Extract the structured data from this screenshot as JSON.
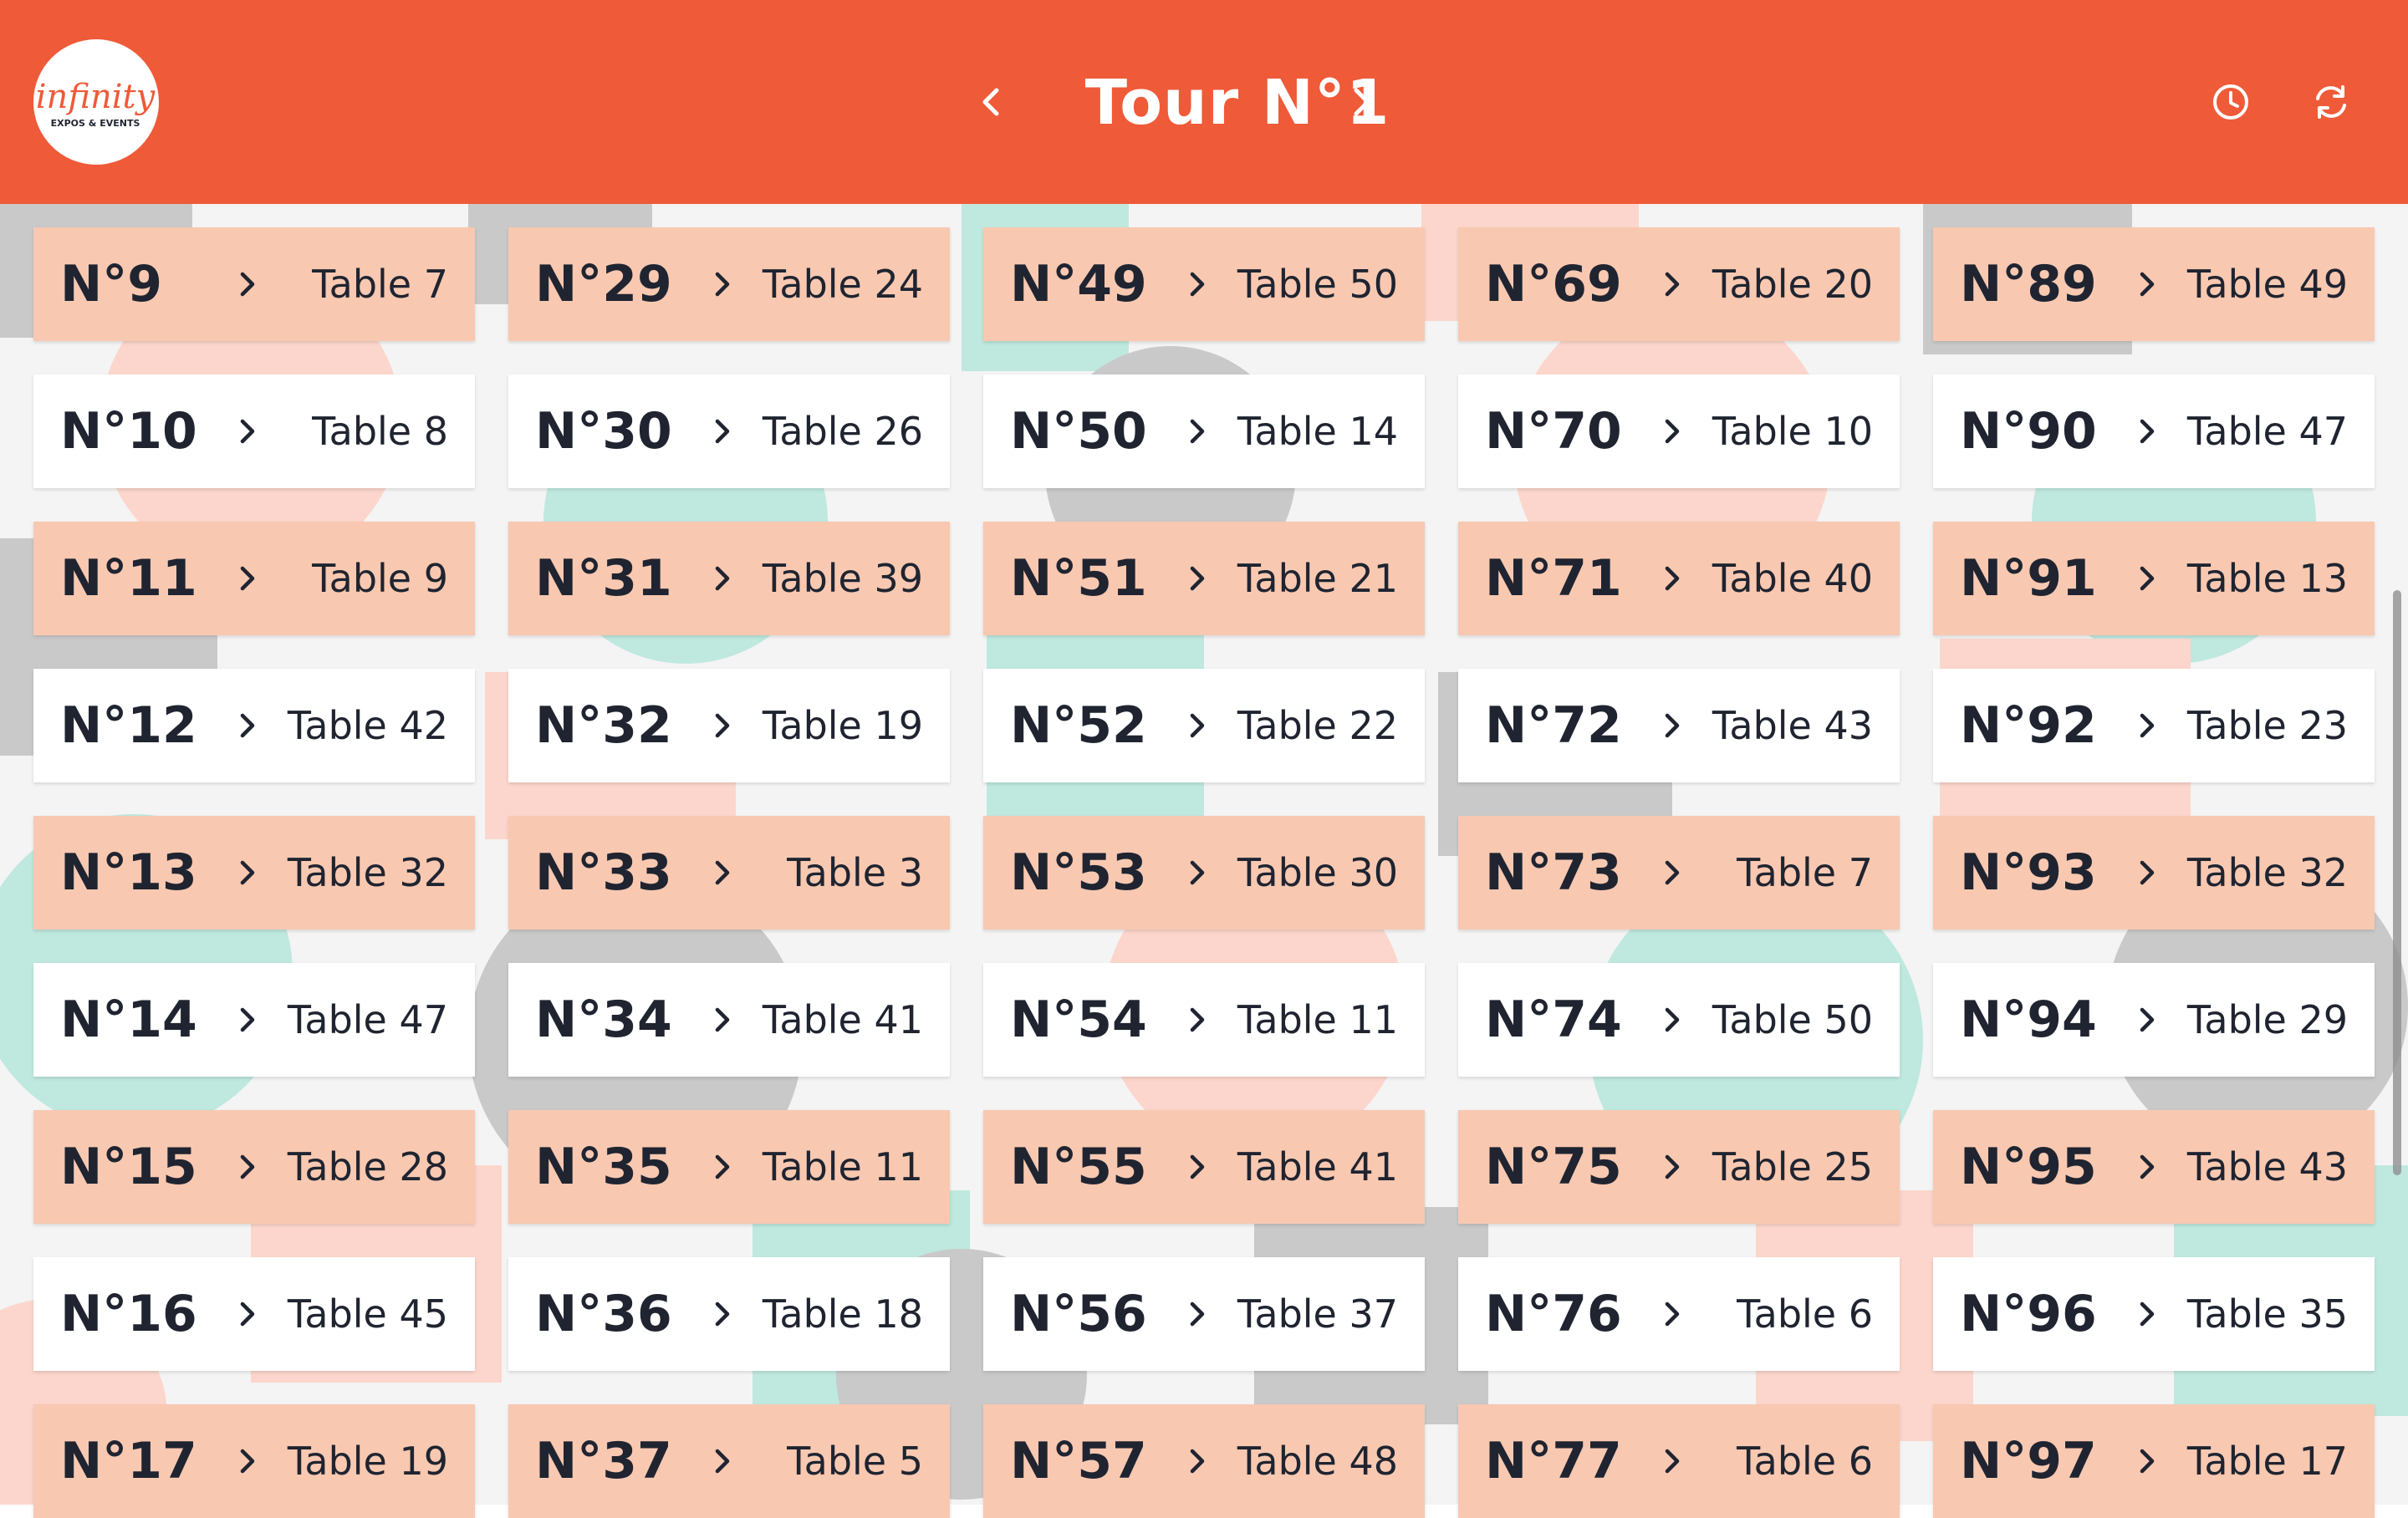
{
  "header": {
    "logo_text": "infinity",
    "logo_subtext": "EXPOS & EVENTS",
    "title": "Tour N°1",
    "prev_icon": "chevron-left-icon",
    "next_icon": "chevron-right-icon",
    "history_icon": "clock-icon",
    "refresh_icon": "refresh-icon",
    "color": "#ef5a38"
  },
  "colors": {
    "peach_row": "#f8c8b1",
    "white_row": "#ffffff",
    "text": "#1f2430"
  },
  "columns": [
    [
      {
        "num": "N°9",
        "table": "Table 7"
      },
      {
        "num": "N°10",
        "table": "Table 8"
      },
      {
        "num": "N°11",
        "table": "Table 9"
      },
      {
        "num": "N°12",
        "table": "Table 42"
      },
      {
        "num": "N°13",
        "table": "Table 32"
      },
      {
        "num": "N°14",
        "table": "Table 47"
      },
      {
        "num": "N°15",
        "table": "Table 28"
      },
      {
        "num": "N°16",
        "table": "Table 45"
      },
      {
        "num": "N°17",
        "table": "Table 19"
      }
    ],
    [
      {
        "num": "N°29",
        "table": "Table 24"
      },
      {
        "num": "N°30",
        "table": "Table 26"
      },
      {
        "num": "N°31",
        "table": "Table 39"
      },
      {
        "num": "N°32",
        "table": "Table 19"
      },
      {
        "num": "N°33",
        "table": "Table 3"
      },
      {
        "num": "N°34",
        "table": "Table 41"
      },
      {
        "num": "N°35",
        "table": "Table 11"
      },
      {
        "num": "N°36",
        "table": "Table 18"
      },
      {
        "num": "N°37",
        "table": "Table 5"
      }
    ],
    [
      {
        "num": "N°49",
        "table": "Table 50"
      },
      {
        "num": "N°50",
        "table": "Table 14"
      },
      {
        "num": "N°51",
        "table": "Table 21"
      },
      {
        "num": "N°52",
        "table": "Table 22"
      },
      {
        "num": "N°53",
        "table": "Table 30"
      },
      {
        "num": "N°54",
        "table": "Table 11"
      },
      {
        "num": "N°55",
        "table": "Table 41"
      },
      {
        "num": "N°56",
        "table": "Table 37"
      },
      {
        "num": "N°57",
        "table": "Table 48"
      }
    ],
    [
      {
        "num": "N°69",
        "table": "Table 20"
      },
      {
        "num": "N°70",
        "table": "Table 10"
      },
      {
        "num": "N°71",
        "table": "Table 40"
      },
      {
        "num": "N°72",
        "table": "Table 43"
      },
      {
        "num": "N°73",
        "table": "Table 7"
      },
      {
        "num": "N°74",
        "table": "Table 50"
      },
      {
        "num": "N°75",
        "table": "Table 25"
      },
      {
        "num": "N°76",
        "table": "Table 6"
      },
      {
        "num": "N°77",
        "table": "Table 6"
      }
    ],
    [
      {
        "num": "N°89",
        "table": "Table 49"
      },
      {
        "num": "N°90",
        "table": "Table 47"
      },
      {
        "num": "N°91",
        "table": "Table 13"
      },
      {
        "num": "N°92",
        "table": "Table 23"
      },
      {
        "num": "N°93",
        "table": "Table 32"
      },
      {
        "num": "N°94",
        "table": "Table 29"
      },
      {
        "num": "N°95",
        "table": "Table 43"
      },
      {
        "num": "N°96",
        "table": "Table 35"
      },
      {
        "num": "N°97",
        "table": "Table 17"
      }
    ]
  ]
}
